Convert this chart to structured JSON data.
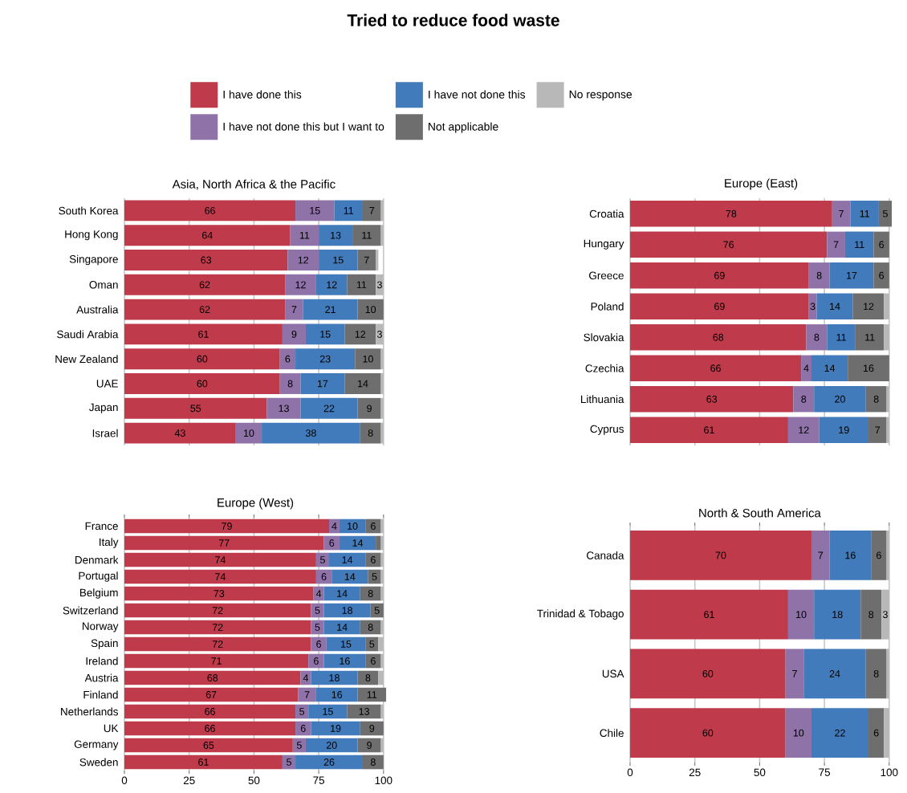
{
  "chart_data": [
    {
      "type": "bar",
      "orientation": "horizontal",
      "stacked": true,
      "title": "Tried to reduce food waste",
      "subtitle": "Asia, North Africa & the Pacific",
      "legend": "top",
      "grid": "x",
      "tick_labels": "y",
      "xlim": [
        0,
        100
      ],
      "xticks": [
        0,
        25,
        50,
        75,
        100
      ],
      "categories": [
        "South Korea",
        "Hong Kong",
        "Singapore",
        "Oman",
        "Australia",
        "Saudi Arabia",
        "New Zealand",
        "UAE",
        "Japan",
        "Israel"
      ],
      "series": [
        {
          "name": "I have done this",
          "color": "#bf3a4a",
          "values": [
            66,
            64,
            63,
            62,
            62,
            61,
            60,
            60,
            55,
            43
          ],
          "value_labels": [
            "66",
            "64",
            "63",
            "62",
            "62",
            "61",
            "60",
            "60",
            "55",
            "43"
          ]
        },
        {
          "name": "I have not done this but I want to",
          "color": "#8e72a8",
          "values": [
            15,
            11,
            12,
            12,
            7,
            9,
            6,
            8,
            13,
            10
          ],
          "value_labels": [
            "15",
            "11",
            "12",
            "12",
            "7",
            "9",
            "6",
            "8",
            "13",
            "10"
          ]
        },
        {
          "name": "I have not done this",
          "color": "#427bbb",
          "values": [
            11,
            13,
            15,
            12,
            21,
            15,
            23,
            17,
            22,
            38
          ],
          "value_labels": [
            "11",
            "13",
            "15",
            "12",
            "21",
            "15",
            "23",
            "17",
            "22",
            "38"
          ]
        },
        {
          "name": "Not applicable",
          "color": "#6e6e6e",
          "values": [
            7,
            11,
            7,
            11,
            10,
            12,
            10,
            14,
            9,
            8
          ],
          "value_labels": [
            "7",
            "11",
            "7",
            "11",
            "10",
            "12",
            "10",
            "14",
            "9",
            "8"
          ]
        },
        {
          "name": "No response",
          "color": "#b8b8b8",
          "values": [
            1,
            1,
            1,
            3,
            null,
            3,
            1,
            1,
            1,
            1
          ],
          "value_labels": [
            null,
            null,
            null,
            "3",
            null,
            "3",
            null,
            null,
            null,
            null
          ]
        }
      ]
    },
    {
      "type": "bar",
      "orientation": "horizontal",
      "stacked": true,
      "subtitle": "Europe (East)",
      "grid": "x",
      "tick_labels": "y",
      "xticks": [
        0,
        25,
        50,
        75,
        100
      ],
      "categories": [
        "Croatia",
        "Hungary",
        "Greece",
        "Poland",
        "Slovakia",
        "Czechia",
        "Lithuania",
        "Cyprus"
      ],
      "series": [
        {
          "color": "#bf3a4a",
          "values": [
            78,
            76,
            69,
            69,
            68,
            66,
            63,
            61
          ],
          "value_labels": [
            "78",
            "76",
            "69",
            "69",
            "68",
            "66",
            "63",
            "61"
          ]
        },
        {
          "color": "#8e72a8",
          "values": [
            7,
            7,
            8,
            3,
            8,
            4,
            8,
            12
          ],
          "value_labels": [
            "7",
            "7",
            "8",
            "3",
            "8",
            "4",
            "8",
            "12"
          ]
        },
        {
          "color": "#427bbb",
          "values": [
            11,
            11,
            17,
            14,
            11,
            14,
            20,
            19
          ],
          "value_labels": [
            "11",
            "11",
            "17",
            "14",
            "11",
            "14",
            "20",
            "19"
          ]
        },
        {
          "color": "#6e6e6e",
          "values": [
            5,
            6,
            6,
            12,
            11,
            16,
            8,
            7
          ],
          "value_labels": [
            "5",
            "6",
            "6",
            "12",
            "11",
            "16",
            "8",
            "7"
          ]
        },
        {
          "color": "#b8b8b8",
          "values": [
            null,
            null,
            null,
            2,
            2,
            null,
            1,
            1
          ],
          "value_labels": [
            null,
            null,
            null,
            null,
            null,
            null,
            null,
            null
          ]
        }
      ]
    },
    {
      "type": "bar",
      "orientation": "horizontal",
      "stacked": true,
      "subtitle": "Europe (West)",
      "grid": "x",
      "xlim": [
        0,
        101
      ],
      "xticks": [
        0,
        25,
        50,
        75,
        100
      ],
      "categories": [
        "France",
        "Italy",
        "Denmark",
        "Portugal",
        "Belgium",
        "Switzerland",
        "Norway",
        "Spain",
        "Ireland",
        "Austria",
        "Finland",
        "Netherlands",
        "UK",
        "Germany",
        "Sweden"
      ],
      "series": [
        {
          "color": "#bf3a4a",
          "values": [
            79,
            77,
            74,
            74,
            73,
            72,
            72,
            72,
            71,
            68,
            67,
            66,
            66,
            65,
            61
          ],
          "value_labels": [
            "79",
            "77",
            "74",
            "74",
            "73",
            "72",
            "72",
            "72",
            "71",
            "68",
            "67",
            "66",
            "66",
            "65",
            "61"
          ]
        },
        {
          "color": "#8e72a8",
          "values": [
            4,
            6,
            5,
            6,
            4,
            5,
            5,
            6,
            6,
            4,
            7,
            5,
            6,
            5,
            5
          ],
          "value_labels": [
            "4",
            "6",
            "5",
            "6",
            "4",
            "5",
            "5",
            "6",
            "6",
            "4",
            "7",
            "5",
            "6",
            "5",
            "5"
          ]
        },
        {
          "color": "#427bbb",
          "values": [
            10,
            14,
            14,
            14,
            14,
            18,
            14,
            15,
            16,
            18,
            16,
            15,
            19,
            20,
            26
          ],
          "value_labels": [
            "10",
            "14",
            "14",
            "14",
            "14",
            "18",
            "14",
            "15",
            "16",
            "18",
            "16",
            "15",
            "19",
            "20",
            "26"
          ]
        },
        {
          "color": "#6e6e6e",
          "values": [
            6,
            2,
            6,
            5,
            8,
            5,
            8,
            5,
            6,
            8,
            11,
            13,
            9,
            9,
            8
          ],
          "value_labels": [
            "6",
            null,
            "6",
            "5",
            "8",
            "5",
            "8",
            "5",
            "6",
            "8",
            "11",
            "13",
            "9",
            "9",
            "8"
          ]
        },
        {
          "color": "#b8b8b8",
          "values": [
            1,
            1,
            1,
            1,
            1,
            null,
            1,
            2,
            1,
            2,
            null,
            1,
            null,
            1,
            null
          ],
          "value_labels": [
            null,
            null,
            null,
            null,
            null,
            null,
            null,
            null,
            null,
            null,
            null,
            null,
            null,
            null,
            null
          ]
        }
      ]
    },
    {
      "type": "bar",
      "orientation": "horizontal",
      "stacked": true,
      "subtitle": "North & South America",
      "grid": "x",
      "xlim": [
        0,
        100
      ],
      "xticks": [
        0,
        25,
        50,
        75,
        100
      ],
      "categories": [
        "Canada",
        "Trinidad & Tobago",
        "USA",
        "Chile"
      ],
      "series": [
        {
          "color": "#bf3a4a",
          "values": [
            70,
            61,
            60,
            60
          ],
          "value_labels": [
            "70",
            "61",
            "60",
            "60"
          ]
        },
        {
          "color": "#8e72a8",
          "values": [
            7,
            10,
            7,
            10
          ],
          "value_labels": [
            "7",
            "10",
            "7",
            "10"
          ]
        },
        {
          "color": "#427bbb",
          "values": [
            16,
            18,
            24,
            22
          ],
          "value_labels": [
            "16",
            "18",
            "24",
            "22"
          ]
        },
        {
          "color": "#6e6e6e",
          "values": [
            6,
            8,
            8,
            6
          ],
          "value_labels": [
            "6",
            "8",
            "8",
            "6"
          ]
        },
        {
          "color": "#b8b8b8",
          "values": [
            1,
            3,
            1,
            2
          ],
          "value_labels": [
            null,
            "3",
            null,
            null
          ]
        }
      ]
    }
  ]
}
